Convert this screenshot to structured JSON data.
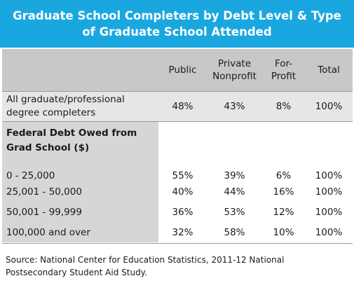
{
  "title": "Graduate School Completers by Debt Level & Type of Graduate School Attended",
  "columns": {
    "public": "Public",
    "private_line1": "Private",
    "private_line2": "Nonprofit",
    "forprofit_line1": "For-",
    "forprofit_line2": "Profit",
    "total": "Total"
  },
  "all_row": {
    "label_line1": "All graduate/professional",
    "label_line2": "degree completers",
    "values": [
      "48%",
      "43%",
      "8%",
      "100%"
    ]
  },
  "section": {
    "label_line1": "Federal Debt Owed from",
    "label_line2": "Grad School ($)"
  },
  "rows": [
    {
      "label": "0 - 25,000",
      "values": [
        "55%",
        "39%",
        "6%",
        "100%"
      ]
    },
    {
      "label": "25,001 - 50,000",
      "values": [
        "40%",
        "44%",
        "16%",
        "100%"
      ]
    },
    {
      "label": "50,001 - 99,999",
      "values": [
        "36%",
        "53%",
        "12%",
        "100%"
      ]
    },
    {
      "label": "100,000 and over",
      "values": [
        "32%",
        "58%",
        "10%",
        "100%"
      ]
    }
  ],
  "source_line1": "Source: National Center for Education Statistics, 2011-12 National",
  "source_line2": "Postsecondary Student Aid Study.",
  "colors": {
    "title_bg": "#1aa7e0",
    "header_bg": "#c8c8c8",
    "label_bg": "#d6d6d6"
  },
  "chart_data": {
    "type": "table",
    "title": "Graduate School Completers by Debt Level & Type of Graduate School Attended",
    "columns": [
      "Public",
      "Private Nonprofit",
      "For-Profit",
      "Total"
    ],
    "rows": [
      {
        "label": "All graduate/professional degree completers",
        "values": [
          48,
          43,
          8,
          100
        ]
      },
      {
        "label": "0 - 25,000",
        "values": [
          55,
          39,
          6,
          100
        ]
      },
      {
        "label": "25,001 - 50,000",
        "values": [
          40,
          44,
          16,
          100
        ]
      },
      {
        "label": "50,001 - 99,999",
        "values": [
          36,
          53,
          12,
          100
        ]
      },
      {
        "label": "100,000 and over",
        "values": [
          32,
          58,
          10,
          100
        ]
      }
    ],
    "row_group_label": "Federal Debt Owed from Grad School ($)",
    "unit": "%"
  }
}
